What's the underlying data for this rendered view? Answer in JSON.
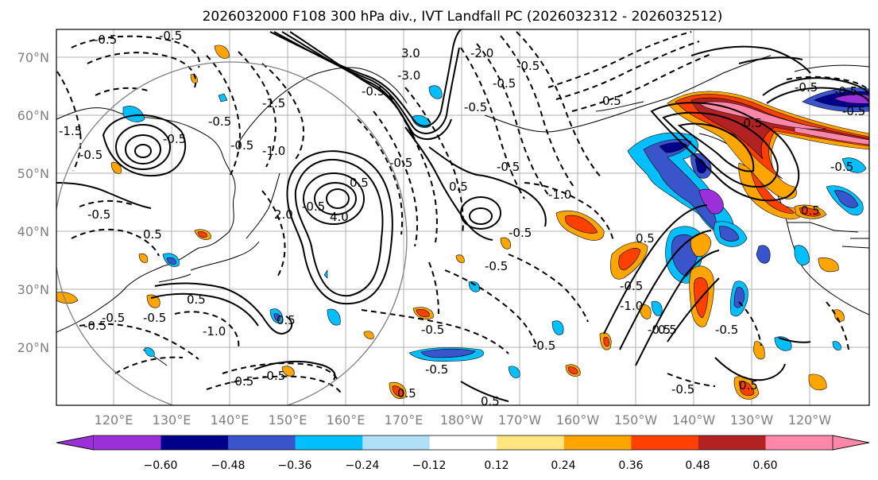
{
  "title": "2026032000 F108 300 hPa div., IVT Landfall PC (2026032312 - 2026032512)",
  "lat_labels": [
    "70°N",
    "60°N",
    "50°N",
    "40°N",
    "30°N",
    "20°N"
  ],
  "lon_labels": [
    "120°E",
    "130°E",
    "140°E",
    "150°E",
    "160°E",
    "170°E",
    "180°W",
    "170°W",
    "160°W",
    "150°W",
    "140°W",
    "130°W",
    "120°W"
  ],
  "colorbar": {
    "labels": [
      "−0.60",
      "−0.48",
      "−0.36",
      "−0.24",
      "−0.12",
      "0.12",
      "0.24",
      "0.36",
      "0.48",
      "0.60"
    ],
    "colors": [
      "#9b30d8",
      "#00008b",
      "#3a54cc",
      "#00bfff",
      "#b0e0f8",
      "#ffffff",
      "#ffe680",
      "#ffa500",
      "#ff4000",
      "#b22222",
      "#ff88aa"
    ]
  },
  "contour_labels": [
    "-0.5",
    "-0.5",
    "-1.5",
    "-0.5",
    "-3.0",
    "3.0",
    "-2.0",
    "-0.5",
    "0.5",
    "-0.5",
    "-1.5",
    "-0.5",
    "-1.0",
    "-0.5",
    "-0.5",
    "-0.5",
    "0.5",
    "-0.5",
    "0.5",
    "-0.5",
    "-1.0",
    "-0.5",
    "-0.5",
    "0.5",
    "4.0",
    "-0.5",
    "-0.5",
    "0.5",
    "-0.5",
    "2.0",
    "-1.0",
    "-0.5",
    "0.5",
    "-0.5",
    "-0.5",
    "-0.5",
    "0.5",
    "-0.5",
    "-0.5",
    "0.5",
    "0.5",
    "-0.5",
    "-0.5",
    "-1.0",
    "0.5",
    "-0.5",
    "-0.5",
    "-0.5",
    "-0.5",
    "-0.5",
    "0.5",
    "0.5",
    "-0.5",
    "-0.5",
    "-0.5",
    "-0.5"
  ]
}
